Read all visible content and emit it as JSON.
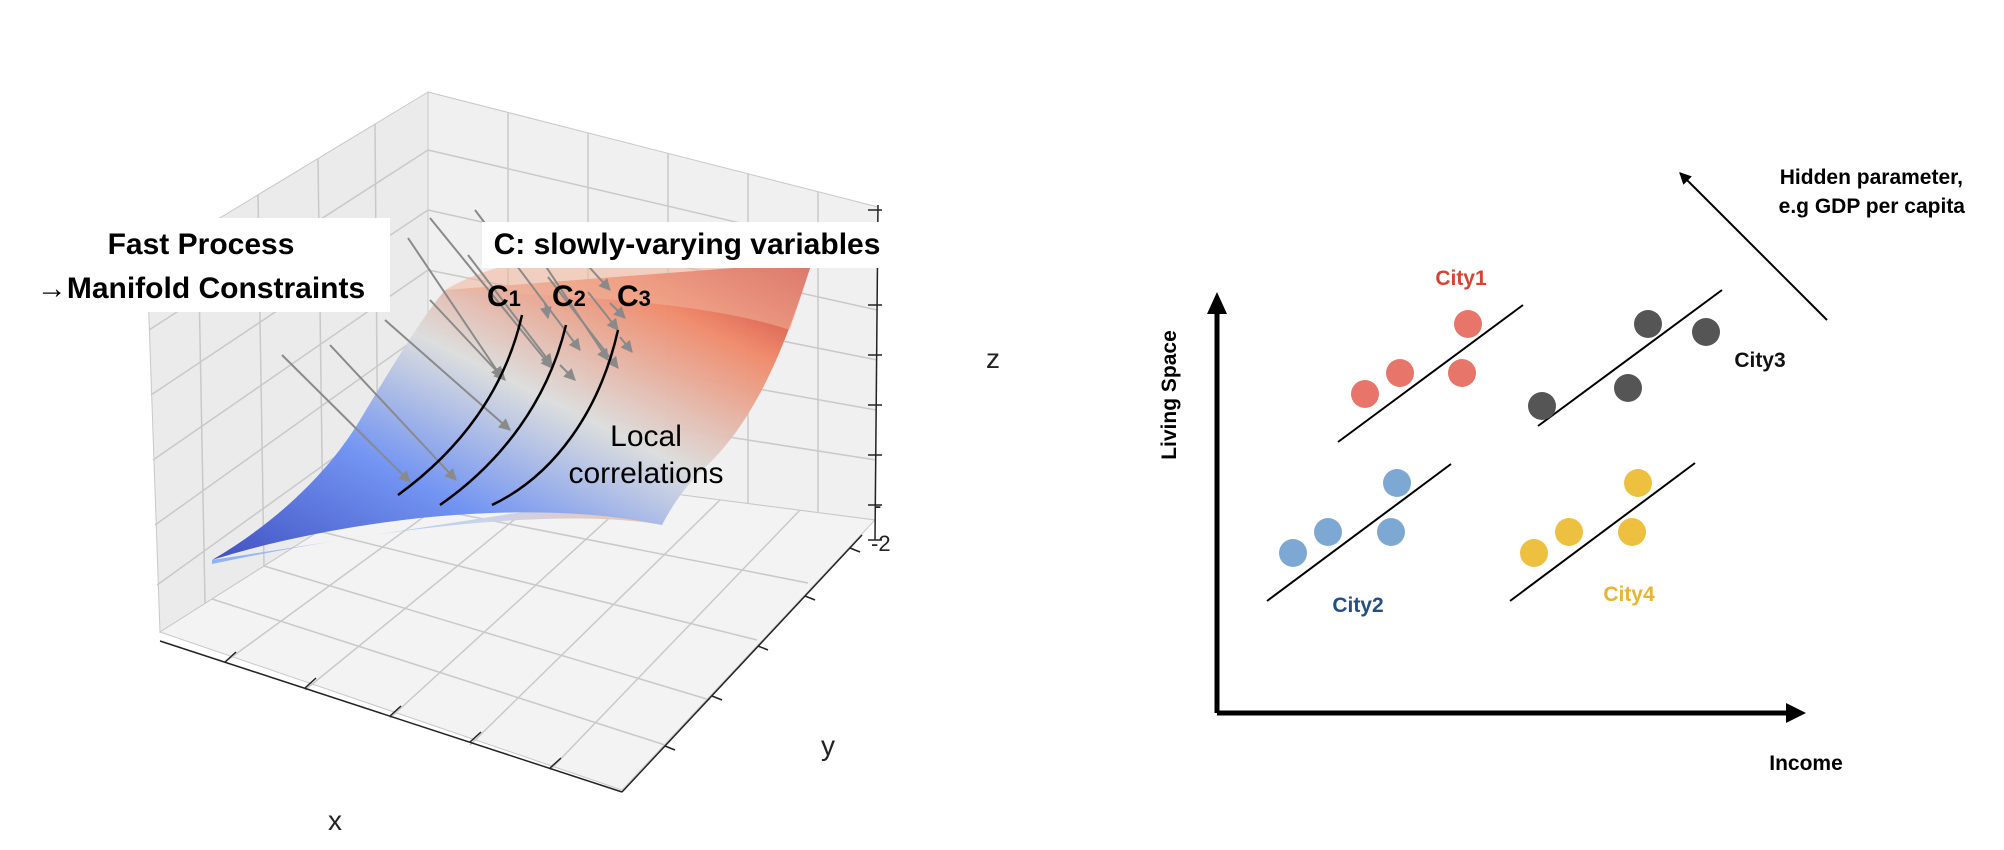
{
  "left_panel": {
    "fast_process_line1": "Fast Process",
    "fast_process_line2": "→Manifold Constraints",
    "slow_vars_label": "C: slowly-varying variables",
    "c_labels": [
      {
        "base": "C",
        "sub": "1"
      },
      {
        "base": "C",
        "sub": "2"
      },
      {
        "base": "C",
        "sub": "3"
      }
    ],
    "local_line1": "Local",
    "local_line2": "correlations",
    "axis_x": "x",
    "axis_y": "y",
    "axis_z": "z",
    "tick_partial_1": "-",
    "tick_partial_2": "-2",
    "colormap": [
      "#3b4cc0",
      "#8db0fe",
      "#dddddd",
      "#f4987a",
      "#b40426"
    ]
  },
  "right_panel": {
    "hidden_param_line1": "Hidden parameter,",
    "hidden_param_line2": "e.g GDP per capita",
    "y_axis_label": "Living Space",
    "x_axis_label": "Income",
    "cities": [
      {
        "name": "City1",
        "color": "#e8756a",
        "label_color": "#d64332"
      },
      {
        "name": "City2",
        "color": "#7ea8d4",
        "label_color": "#234f86"
      },
      {
        "name": "City3",
        "color": "#555555",
        "label_color": "#111111"
      },
      {
        "name": "City4",
        "color": "#eec03f",
        "label_color": "#e8b52e"
      }
    ]
  }
}
